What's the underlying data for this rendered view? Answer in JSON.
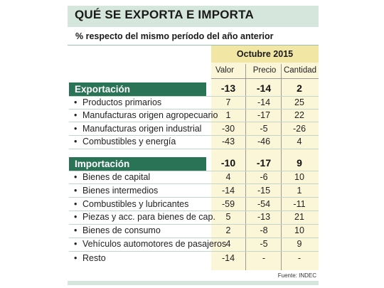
{
  "title": "QUÉ SE EXPORTA E IMPORTA",
  "subtitle": "% respecto del mismo período del año anterior",
  "period": "Octubre 2015",
  "columns": [
    "Valor",
    "Precio",
    "Cantidad"
  ],
  "sections": [
    {
      "name": "Exportación",
      "totals": [
        "-13",
        "-14",
        "2"
      ],
      "rows": [
        {
          "label": "Productos primarios",
          "values": [
            "7",
            "-14",
            "25"
          ]
        },
        {
          "label": "Manufacturas origen agropecuario",
          "values": [
            "1",
            "-17",
            "22"
          ]
        },
        {
          "label": "Manufacturas origen industrial",
          "values": [
            "-30",
            "-5",
            "-26"
          ]
        },
        {
          "label": "Combustibles y energía",
          "values": [
            "-43",
            "-46",
            "4"
          ]
        }
      ]
    },
    {
      "name": "Importación",
      "totals": [
        "-10",
        "-17",
        "9"
      ],
      "rows": [
        {
          "label": "Bienes de capital",
          "values": [
            "4",
            "-6",
            "10"
          ]
        },
        {
          "label": "Bienes intermedios",
          "values": [
            "-14",
            "-15",
            "1"
          ]
        },
        {
          "label": "Combustibles y lubricantes",
          "values": [
            "-59",
            "-54",
            "-11"
          ]
        },
        {
          "label": "Piezas y acc. para bienes de cap.",
          "values": [
            "5",
            "-13",
            "21"
          ]
        },
        {
          "label": "Bienes de consumo",
          "values": [
            "2",
            "-8",
            "10"
          ]
        },
        {
          "label": "Vehículos automotores de pasajeros",
          "values": [
            "4",
            "-5",
            "9"
          ]
        },
        {
          "label": "Resto",
          "values": [
            "-14",
            "-",
            "-"
          ]
        }
      ]
    }
  ],
  "source": "Fuente: INDEC",
  "colors": {
    "header_band": "#d5e6dc",
    "section_label_bg": "#2b7357",
    "period_band": "#f2e6a4"
  }
}
